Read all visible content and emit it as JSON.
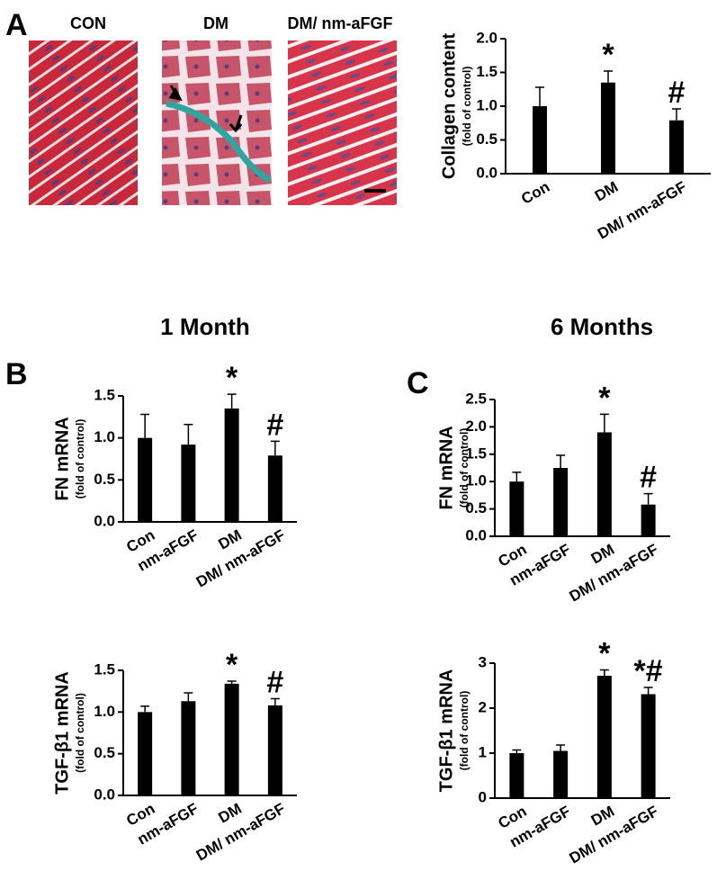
{
  "figure": {
    "panel_labels": [
      "A",
      "B",
      "C"
    ],
    "column_titles": [
      "1 Month",
      "6 Months"
    ],
    "image_labels": [
      "CON",
      "DM",
      "DM/ nm-aFGF"
    ]
  },
  "chart_data": [
    {
      "type": "bar",
      "ylabel": "Collagen content",
      "ysublabel": "(fold of control)",
      "categories": [
        "Con",
        "DM",
        "DM/ nm-aFGF"
      ],
      "values": [
        1.0,
        1.35,
        0.79
      ],
      "errors": [
        0.28,
        0.17,
        0.17
      ],
      "value_annotations": [
        null,
        "*",
        "#"
      ],
      "color": "#000000",
      "ylim": [
        0,
        2
      ],
      "yticks": [
        {
          "value": 0,
          "label": "0.0"
        },
        0.5,
        {
          "value": 1,
          "label": "1.0"
        },
        1.5,
        {
          "value": 2,
          "label": "2.0"
        }
      ]
    },
    {
      "type": "bar",
      "ylabel": "FN mRNA",
      "ysublabel": "(fold of control)",
      "categories": [
        "Con",
        "nm-aFGF",
        "DM",
        "DM/ nm-aFGF"
      ],
      "values": [
        1.0,
        0.92,
        1.35,
        0.79
      ],
      "errors": [
        0.28,
        0.24,
        0.17,
        0.17
      ],
      "value_annotations": [
        null,
        null,
        "*",
        "#"
      ],
      "color": "#000000",
      "ylim": [
        0,
        1.5
      ],
      "yticks": [
        {
          "value": 0,
          "label": "0.0"
        },
        0.5,
        {
          "value": 1,
          "label": "1.0"
        },
        1.5
      ]
    },
    {
      "type": "bar",
      "ylabel": "TGF-β1 mRNA",
      "ysublabel": "(fold of control)",
      "categories": [
        "Con",
        "nm-aFGF",
        "DM",
        "DM/ nm-aFGF"
      ],
      "values": [
        1.0,
        1.13,
        1.34,
        1.08
      ],
      "errors": [
        0.07,
        0.1,
        0.03,
        0.08
      ],
      "value_annotations": [
        null,
        null,
        "*",
        "#"
      ],
      "color": "#000000",
      "ylim": [
        0,
        1.5
      ],
      "yticks": [
        {
          "value": 0,
          "label": "0.0"
        },
        0.5,
        {
          "value": 1,
          "label": "1.0"
        },
        1.5
      ]
    },
    {
      "type": "bar",
      "ylabel": "FN mRNA",
      "ysublabel": "(fold of control)",
      "categories": [
        "Con",
        "nm-aFGF",
        "DM",
        "DM/ nm-aFGF"
      ],
      "values": [
        1.0,
        1.25,
        1.9,
        0.58
      ],
      "errors": [
        0.17,
        0.23,
        0.33,
        0.2
      ],
      "value_annotations": [
        null,
        null,
        "*",
        "#"
      ],
      "color": "#000000",
      "ylim": [
        0,
        2.5
      ],
      "yticks": [
        {
          "value": 0,
          "label": "0.0"
        },
        0.5,
        {
          "value": 1,
          "label": "1.0"
        },
        1.5,
        {
          "value": 2,
          "label": "2.0"
        },
        2.5
      ]
    },
    {
      "type": "bar",
      "ylabel": "TGF-β1 mRNA",
      "ysublabel": "(fold of control)",
      "categories": [
        "Con",
        "nm-aFGF",
        "DM",
        "DM/ nm-aFGF"
      ],
      "values": [
        1.0,
        1.05,
        2.72,
        2.31
      ],
      "errors": [
        0.07,
        0.13,
        0.13,
        0.15
      ],
      "value_annotations": [
        null,
        null,
        "*",
        "*#"
      ],
      "color": "#000000",
      "ylim": [
        0,
        3
      ],
      "yticks": [
        0,
        1,
        2,
        3
      ]
    }
  ]
}
